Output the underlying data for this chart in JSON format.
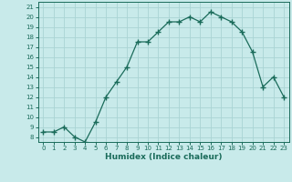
{
  "x": [
    0,
    1,
    2,
    3,
    4,
    5,
    6,
    7,
    8,
    9,
    10,
    11,
    12,
    13,
    14,
    15,
    16,
    17,
    18,
    19,
    20,
    21,
    22,
    23
  ],
  "y": [
    8.5,
    8.5,
    9.0,
    8.0,
    7.5,
    9.5,
    12.0,
    13.5,
    15.0,
    17.5,
    17.5,
    18.5,
    19.5,
    19.5,
    20.0,
    19.5,
    20.5,
    20.0,
    19.5,
    18.5,
    16.5,
    13.0,
    14.0,
    12.0
  ],
  "xlabel": "Humidex (Indice chaleur)",
  "ylim": [
    7.5,
    21.5
  ],
  "xlim": [
    -0.5,
    23.5
  ],
  "yticks": [
    8,
    9,
    10,
    11,
    12,
    13,
    14,
    15,
    16,
    17,
    18,
    19,
    20,
    21
  ],
  "xticks": [
    0,
    1,
    2,
    3,
    4,
    5,
    6,
    7,
    8,
    9,
    10,
    11,
    12,
    13,
    14,
    15,
    16,
    17,
    18,
    19,
    20,
    21,
    22,
    23
  ],
  "line_color": "#1a6b5a",
  "marker": "+",
  "bg_color": "#c8eaea",
  "grid_color": "#aad4d4",
  "xlabel_fontsize": 6.5,
  "tick_fontsize": 5.0
}
